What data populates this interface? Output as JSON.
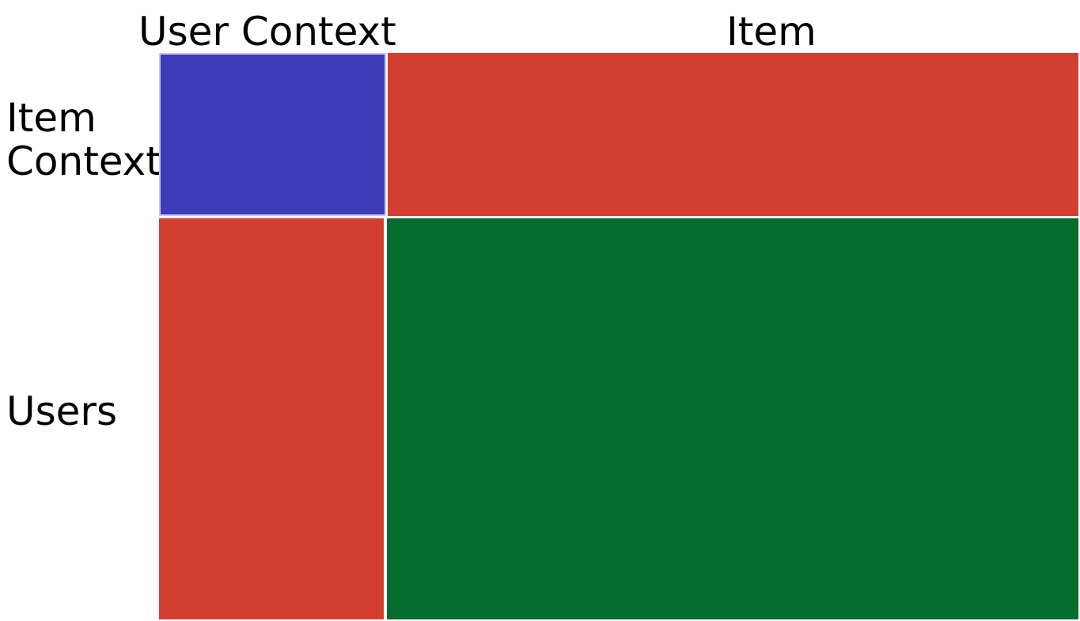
{
  "column_labels": [
    "User Context",
    "Item"
  ],
  "row_labels": {
    "item_context_line1": "Item",
    "item_context_line2": "Context",
    "users": "Users"
  },
  "colors": {
    "user_item_context": "#3d3bb8",
    "item_context_items": "#d23e30",
    "users_user_context": "#d23e30",
    "users_items": "#066d2f",
    "divider": "#e6e6e6"
  }
}
